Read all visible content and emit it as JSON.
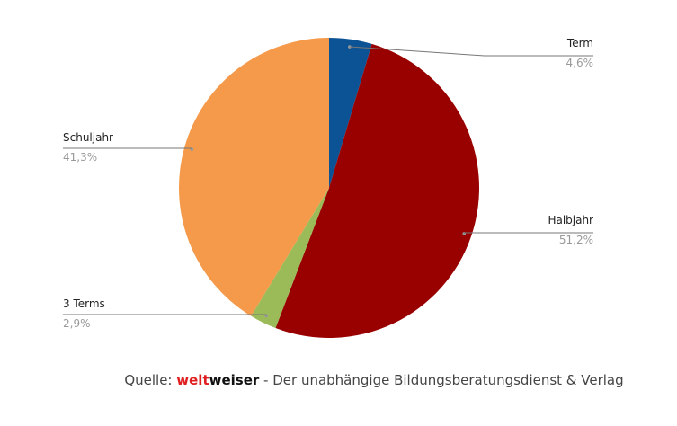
{
  "chart_data": {
    "type": "pie",
    "categories": [
      "Term",
      "Halbjahr",
      "3 Terms",
      "Schuljahr"
    ],
    "values": [
      4.6,
      51.2,
      2.9,
      41.3
    ],
    "value_labels": [
      "4,6%",
      "51,2%",
      "2,9%",
      "41,3%"
    ],
    "colors": [
      "#0b5394",
      "#990000",
      "#9bbb59",
      "#f59a4a"
    ]
  },
  "source": {
    "prefix": "Quelle: ",
    "brand_red": "welt",
    "brand_black": "weiser",
    "suffix": " - Der unabhängige Bildungsberatungsdienst & Verlag"
  }
}
